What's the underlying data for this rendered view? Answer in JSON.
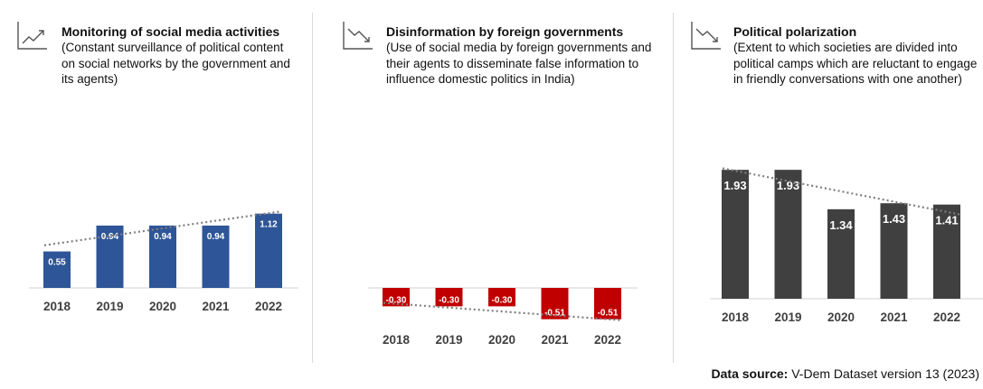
{
  "chart_data": [
    {
      "type": "bar",
      "title": "Monitoring of social media activities",
      "subtitle": "(Constant surveillance of political content on social networks by the government and its agents)",
      "trend_icon": "trend-up-icon",
      "categories": [
        "2018",
        "2019",
        "2020",
        "2021",
        "2022"
      ],
      "values": [
        0.55,
        0.94,
        0.94,
        0.94,
        1.12
      ],
      "trendline": true,
      "color": "#2e5597",
      "label_color": "#ffffff",
      "grid": false
    },
    {
      "type": "bar",
      "title": "Disinformation by foreign governments",
      "subtitle": "(Use of social media by foreign governments and their agents to disseminate false information to influence domestic politics in India)",
      "trend_icon": "trend-down-icon",
      "categories": [
        "2018",
        "2019",
        "2020",
        "2021",
        "2022"
      ],
      "values": [
        -0.3,
        -0.3,
        -0.3,
        -0.51,
        -0.51
      ],
      "labels": [
        "-0.30",
        "-0.30",
        "-0.30",
        "-0.51",
        "-0.51"
      ],
      "trendline": true,
      "color": "#c00000",
      "label_color": "#ffffff",
      "grid": false
    },
    {
      "type": "bar",
      "title": "Political polarization",
      "subtitle": "(Extent to which societies are divided into political camps which are reluctant to engage in friendly conversations with one another)",
      "trend_icon": "trend-down-icon",
      "categories": [
        "2018",
        "2019",
        "2020",
        "2021",
        "2022"
      ],
      "values": [
        1.93,
        1.93,
        1.34,
        1.43,
        1.41
      ],
      "trendline": true,
      "color": "#404040",
      "label_color": "#ffffff",
      "grid": false
    }
  ],
  "source": {
    "label": "Data source:",
    "text": " V-Dem Dataset version 13 (2023)"
  }
}
